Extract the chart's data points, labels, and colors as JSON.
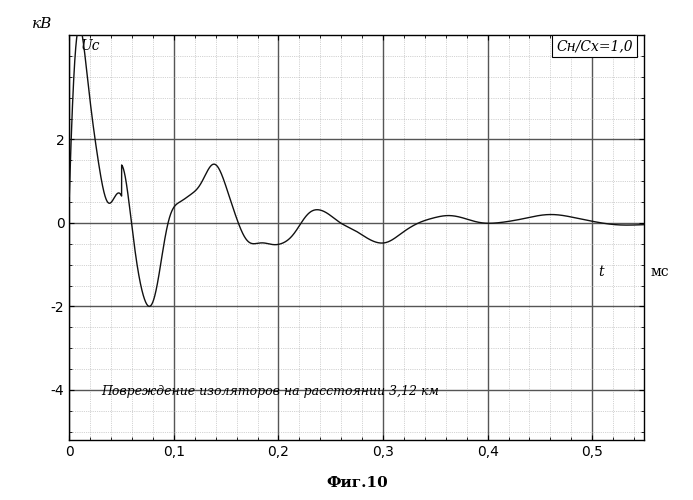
{
  "xlabel_ms": "мс",
  "ylabel_kv": "кВ",
  "label_uc": "Uc",
  "annotation": "Повреждение изоляторов на расстоянии 3,12 км",
  "legend_text": "Cн/Cх=1,0",
  "fig_label": "Фиг.10",
  "t_label": "t",
  "xlim": [
    0,
    0.55
  ],
  "ylim": [
    -5.2,
    4.5
  ],
  "yticks": [
    -4,
    -2,
    0,
    2
  ],
  "xticks": [
    0,
    0.1,
    0.2,
    0.3,
    0.4,
    0.5
  ],
  "background_color": "#ffffff",
  "line_color": "#111111",
  "grid_major_color": "#555555",
  "grid_minor_color": "#aaaaaa"
}
